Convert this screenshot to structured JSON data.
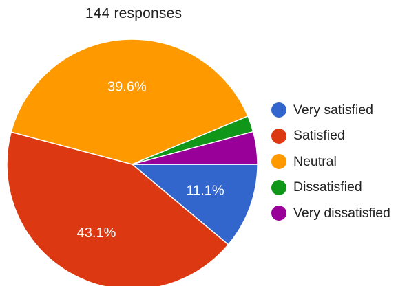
{
  "summary": {
    "responses_text": "144 responses"
  },
  "chart_data": {
    "type": "pie",
    "title": "",
    "total_responses": 144,
    "slices": [
      {
        "label": "Very satisfied",
        "value": 11.1,
        "display": "11.1%",
        "color": "#3366cc"
      },
      {
        "label": "Satisfied",
        "value": 43.1,
        "display": "43.1%",
        "color": "#dc3912"
      },
      {
        "label": "Neutral",
        "value": 39.6,
        "display": "39.6%",
        "color": "#ff9900"
      },
      {
        "label": "Dissatisfied",
        "value": 2.1,
        "display": "",
        "color": "#109618"
      },
      {
        "label": "Very dissatisfied",
        "value": 4.2,
        "display": "",
        "color": "#990099"
      }
    ],
    "legend": "right"
  }
}
